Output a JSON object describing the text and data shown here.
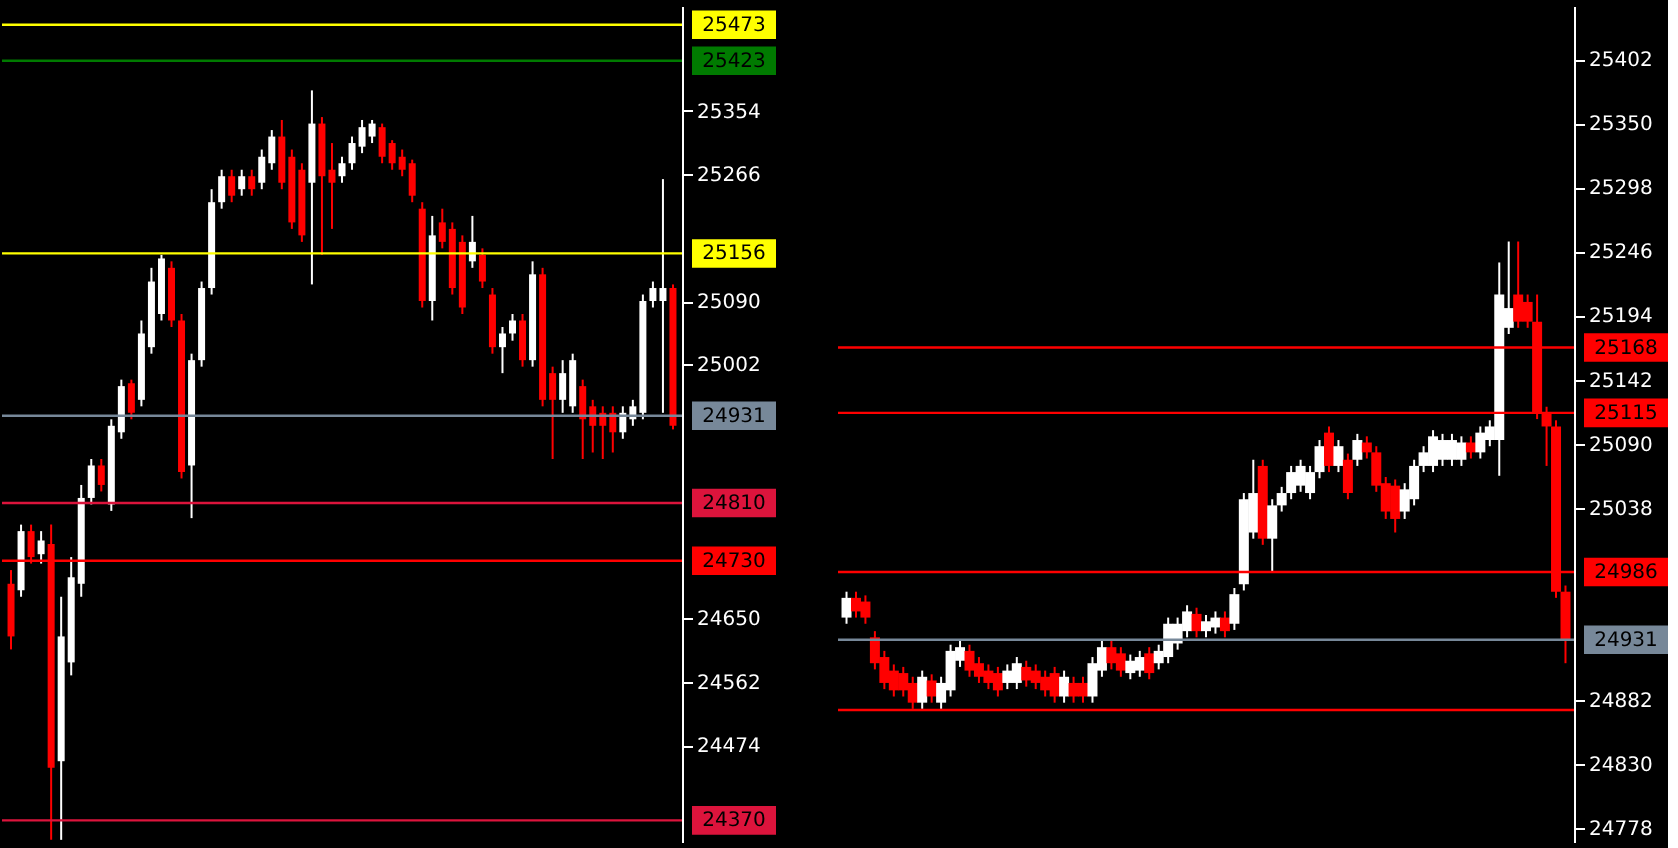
{
  "chart_data": [
    {
      "type": "candlestick",
      "tick_labels": "y",
      "grid": false,
      "categories": [
        null,
        null,
        null,
        null,
        null,
        null,
        null,
        null,
        null,
        null,
        null,
        null,
        null,
        null,
        null,
        null,
        null,
        null,
        null,
        null,
        null,
        null,
        null,
        null,
        null,
        null,
        null,
        null,
        null,
        null,
        null,
        null,
        null,
        null,
        null,
        null,
        null,
        null,
        null,
        null,
        null,
        null,
        null,
        null,
        null,
        null,
        null,
        null,
        null,
        null,
        null,
        null,
        null,
        null,
        null,
        null,
        null,
        null,
        null,
        null,
        null,
        null,
        null,
        null,
        null,
        null,
        null
      ],
      "ohlc": [
        [
          24698,
          24717,
          24607,
          24625
        ],
        [
          24689,
          24780,
          24680,
          24771
        ],
        [
          24771,
          24780,
          24726,
          24735
        ],
        [
          24739,
          24771,
          24726,
          24758
        ],
        [
          24753,
          24780,
          24343,
          24443
        ],
        [
          24452,
          24680,
          24343,
          24625
        ],
        [
          24589,
          24735,
          24571,
          24707
        ],
        [
          24698,
          24835,
          24680,
          24817
        ],
        [
          24817,
          24871,
          24808,
          24862
        ],
        [
          24862,
          24871,
          24826,
          24835
        ],
        [
          24808,
          24926,
          24799,
          24917
        ],
        [
          24908,
          24981,
          24899,
          24972
        ],
        [
          24976,
          24981,
          24926,
          24935
        ],
        [
          24953,
          25063,
          24944,
          25045
        ],
        [
          25026,
          25136,
          25017,
          25117
        ],
        [
          25072,
          25154,
          25063,
          25149
        ],
        [
          25136,
          25145,
          25054,
          25063
        ],
        [
          25063,
          25072,
          24844,
          24853
        ],
        [
          24862,
          25017,
          24789,
          25008
        ],
        [
          25008,
          25117,
          24999,
          25108
        ],
        [
          25108,
          25245,
          25099,
          25227
        ],
        [
          25227,
          25272,
          25218,
          25263
        ],
        [
          25263,
          25272,
          25227,
          25236
        ],
        [
          25245,
          25272,
          25236,
          25263
        ],
        [
          25263,
          25272,
          25236,
          25245
        ],
        [
          25254,
          25300,
          25245,
          25290
        ],
        [
          25281,
          25327,
          25272,
          25318
        ],
        [
          25318,
          25341,
          25245,
          25254
        ],
        [
          25290,
          25300,
          25190,
          25199
        ],
        [
          25272,
          25281,
          25172,
          25181
        ],
        [
          25254,
          25382,
          25113,
          25336
        ],
        [
          25336,
          25345,
          25154,
          25263
        ],
        [
          25272,
          25309,
          25190,
          25254
        ],
        [
          25263,
          25290,
          25254,
          25281
        ],
        [
          25281,
          25318,
          25272,
          25309
        ],
        [
          25304,
          25341,
          25295,
          25331
        ],
        [
          25318,
          25341,
          25309,
          25336
        ],
        [
          25331,
          25336,
          25281,
          25290
        ],
        [
          25309,
          25313,
          25272,
          25281
        ],
        [
          25290,
          25300,
          25263,
          25272
        ],
        [
          25281,
          25286,
          25227,
          25236
        ],
        [
          25218,
          25227,
          25081,
          25090
        ],
        [
          25090,
          25208,
          25063,
          25181
        ],
        [
          25199,
          25218,
          25163,
          25172
        ],
        [
          25190,
          25199,
          25099,
          25108
        ],
        [
          25172,
          25181,
          25072,
          25081
        ],
        [
          25145,
          25208,
          25136,
          25172
        ],
        [
          25154,
          25163,
          25108,
          25117
        ],
        [
          25099,
          25108,
          25017,
          25026
        ],
        [
          25026,
          25054,
          24990,
          25045
        ],
        [
          25045,
          25072,
          25035,
          25063
        ],
        [
          25063,
          25072,
          24999,
          25008
        ],
        [
          25008,
          25145,
          24999,
          25127
        ],
        [
          25127,
          25136,
          24944,
          24953
        ],
        [
          24990,
          24999,
          24871,
          24953
        ],
        [
          24953,
          25008,
          24935,
          24990
        ],
        [
          24944,
          25017,
          24935,
          25008
        ],
        [
          24972,
          24981,
          24871,
          24926
        ],
        [
          24944,
          24953,
          24880,
          24917
        ],
        [
          24935,
          24944,
          24871,
          24917
        ],
        [
          24935,
          24944,
          24880,
          24908
        ],
        [
          24908,
          24944,
          24899,
          24935
        ],
        [
          24926,
          24953,
          24917,
          24944
        ],
        [
          24935,
          25099,
          24926,
          25090
        ],
        [
          25090,
          25117,
          25081,
          25108
        ],
        [
          25090,
          25259,
          24935,
          25108
        ],
        [
          25108,
          25113,
          24912,
          24917
        ]
      ],
      "colors": [
        "#ff0000",
        "#ffffff",
        "#ff0000",
        "#ffffff",
        "#ff0000",
        "#ffffff",
        "#ffffff",
        "#ffffff",
        "#ffffff",
        "#ff0000",
        "#ffffff",
        "#ffffff",
        "#ff0000",
        "#ffffff",
        "#ffffff",
        "#ffffff",
        "#ff0000",
        "#ff0000",
        "#ffffff",
        "#ffffff",
        "#ffffff",
        "#ffffff",
        "#ff0000",
        "#ffffff",
        "#ff0000",
        "#ffffff",
        "#ffffff",
        "#ff0000",
        "#ff0000",
        "#ff0000",
        "#ffffff",
        "#ff0000",
        "#ff0000",
        "#ffffff",
        "#ffffff",
        "#ffffff",
        "#ffffff",
        "#ff0000",
        "#ff0000",
        "#ff0000",
        "#ff0000",
        "#ff0000",
        "#ffffff",
        "#ff0000",
        "#ff0000",
        "#ff0000",
        "#ffffff",
        "#ff0000",
        "#ff0000",
        "#ffffff",
        "#ffffff",
        "#ff0000",
        "#ffffff",
        "#ff0000",
        "#ff0000",
        "#ffffff",
        "#ffffff",
        "#ff0000",
        "#ff0000",
        "#ff0000",
        "#ff0000",
        "#ffffff",
        "#ffffff",
        "#ffffff",
        "#ffffff",
        "#ffffff",
        "#ff0000"
      ],
      "ylim": [
        24340,
        25499
      ],
      "yticks": [
        25354,
        25266,
        25090,
        25002,
        24650,
        24562,
        24474
      ],
      "ref_lines": [
        {
          "axis": "y",
          "value": 25473,
          "label": "25473",
          "color": "#ffff00"
        },
        {
          "axis": "y",
          "value": 25423,
          "label": "25423",
          "color": "#007a00"
        },
        {
          "axis": "y",
          "value": 25156,
          "label": "25156",
          "color": "#ffff00"
        },
        {
          "axis": "y",
          "value": 24931,
          "label": "24931",
          "color": "#778899"
        },
        {
          "axis": "y",
          "value": 24810,
          "label": "24810",
          "color": "#dc143c"
        },
        {
          "axis": "y",
          "value": 24730,
          "label": "24730",
          "color": "#ff0000"
        },
        {
          "axis": "y",
          "value": 24370,
          "label": "24370",
          "color": "#dc143c"
        }
      ]
    },
    {
      "type": "candlestick",
      "tick_labels": "y",
      "grid": false,
      "categories": [
        null,
        null,
        null,
        null,
        null,
        null,
        null,
        null,
        null,
        null,
        null,
        null,
        null,
        null,
        null,
        null,
        null,
        null,
        null,
        null,
        null,
        null,
        null,
        null,
        null,
        null,
        null,
        null,
        null,
        null,
        null,
        null,
        null,
        null,
        null,
        null,
        null,
        null,
        null,
        null,
        null,
        null,
        null,
        null,
        null,
        null,
        null,
        null,
        null,
        null,
        null,
        null,
        null,
        null,
        null,
        null,
        null,
        null,
        null,
        null,
        null,
        null,
        null,
        null,
        null,
        null,
        null,
        null,
        null,
        null,
        null,
        null,
        null,
        null,
        null,
        null,
        null
      ],
      "ohlc": [
        [
          24949,
          24970,
          24944,
          24965
        ],
        [
          24965,
          24970,
          24949,
          24954
        ],
        [
          24962,
          24967,
          24944,
          24949
        ],
        [
          24933,
          24938,
          24907,
          24912
        ],
        [
          24917,
          24922,
          24891,
          24896
        ],
        [
          24906,
          24911,
          24885,
          24890
        ],
        [
          24904,
          24909,
          24885,
          24890
        ],
        [
          24896,
          24901,
          24875,
          24880
        ],
        [
          24880,
          24906,
          24875,
          24901
        ],
        [
          24898,
          24903,
          24880,
          24885
        ],
        [
          24880,
          24901,
          24875,
          24896
        ],
        [
          24890,
          24927,
          24885,
          24922
        ],
        [
          24914,
          24930,
          24909,
          24925
        ],
        [
          24922,
          24927,
          24901,
          24906
        ],
        [
          24912,
          24917,
          24896,
          24901
        ],
        [
          24906,
          24911,
          24891,
          24896
        ],
        [
          24904,
          24909,
          24885,
          24890
        ],
        [
          24896,
          24911,
          24891,
          24906
        ],
        [
          24896,
          24917,
          24891,
          24912
        ],
        [
          24909,
          24914,
          24893,
          24898
        ],
        [
          24906,
          24911,
          24891,
          24896
        ],
        [
          24901,
          24906,
          24885,
          24890
        ],
        [
          24904,
          24909,
          24880,
          24885
        ],
        [
          24885,
          24906,
          24880,
          24901
        ],
        [
          24896,
          24901,
          24880,
          24885
        ],
        [
          24896,
          24901,
          24880,
          24885
        ],
        [
          24885,
          24917,
          24880,
          24912
        ],
        [
          24906,
          24930,
          24901,
          24925
        ],
        [
          24925,
          24930,
          24907,
          24912
        ],
        [
          24920,
          24925,
          24901,
          24906
        ],
        [
          24904,
          24919,
          24899,
          24914
        ],
        [
          24906,
          24922,
          24901,
          24917
        ],
        [
          24920,
          24925,
          24899,
          24904
        ],
        [
          24912,
          24927,
          24907,
          24922
        ],
        [
          24917,
          24949,
          24912,
          24944
        ],
        [
          24928,
          24949,
          24923,
          24944
        ],
        [
          24938,
          24959,
          24933,
          24954
        ],
        [
          24952,
          24957,
          24933,
          24938
        ],
        [
          24938,
          24951,
          24933,
          24946
        ],
        [
          24941,
          24954,
          24936,
          24949
        ],
        [
          24949,
          24954,
          24933,
          24938
        ],
        [
          24944,
          24973,
          24939,
          24968
        ],
        [
          24976,
          25050,
          24971,
          25045
        ],
        [
          25018,
          25077,
          25013,
          25050
        ],
        [
          25072,
          25077,
          25008,
          25013
        ],
        [
          25013,
          25045,
          24986,
          25040
        ],
        [
          25040,
          25055,
          25035,
          25050
        ],
        [
          25050,
          25072,
          25045,
          25067
        ],
        [
          25056,
          25077,
          25051,
          25072
        ],
        [
          25050,
          25072,
          25045,
          25067
        ],
        [
          25067,
          25093,
          25062,
          25088
        ],
        [
          25099,
          25104,
          25067,
          25072
        ],
        [
          25072,
          25093,
          25067,
          25088
        ],
        [
          25077,
          25082,
          25045,
          25050
        ],
        [
          25077,
          25098,
          25072,
          25093
        ],
        [
          25091,
          25096,
          25078,
          25083
        ],
        [
          25083,
          25088,
          25051,
          25056
        ],
        [
          25058,
          25063,
          25029,
          25035
        ],
        [
          25056,
          25061,
          25018,
          25029
        ],
        [
          25035,
          25058,
          25029,
          25053
        ],
        [
          25045,
          25077,
          25040,
          25072
        ],
        [
          25072,
          25088,
          25067,
          25083
        ],
        [
          25072,
          25101,
          25067,
          25096
        ],
        [
          25077,
          25098,
          25072,
          25093
        ],
        [
          25077,
          25098,
          25072,
          25093
        ],
        [
          25077,
          25096,
          25072,
          25091
        ],
        [
          25091,
          25096,
          25078,
          25083
        ],
        [
          25083,
          25104,
          25078,
          25099
        ],
        [
          25093,
          25109,
          25088,
          25104
        ],
        [
          25093,
          25237,
          25064,
          25211
        ],
        [
          25184,
          25254,
          25179,
          25200
        ],
        [
          25211,
          25254,
          25184,
          25189
        ],
        [
          25205,
          25211,
          25184,
          25189
        ],
        [
          25189,
          25211,
          25110,
          25115
        ],
        [
          25115,
          25120,
          25072,
          25104
        ],
        [
          25104,
          25109,
          24965,
          24970
        ],
        [
          24970,
          24975,
          24912,
          24930
        ]
      ],
      "colors": [
        "#ffffff",
        "#ff0000",
        "#ff0000",
        "#ff0000",
        "#ff0000",
        "#ff0000",
        "#ff0000",
        "#ff0000",
        "#ffffff",
        "#ff0000",
        "#ffffff",
        "#ffffff",
        "#ffffff",
        "#ff0000",
        "#ff0000",
        "#ff0000",
        "#ff0000",
        "#ffffff",
        "#ffffff",
        "#ff0000",
        "#ff0000",
        "#ff0000",
        "#ff0000",
        "#ffffff",
        "#ff0000",
        "#ff0000",
        "#ffffff",
        "#ffffff",
        "#ff0000",
        "#ff0000",
        "#ffffff",
        "#ffffff",
        "#ff0000",
        "#ffffff",
        "#ffffff",
        "#ffffff",
        "#ffffff",
        "#ff0000",
        "#ffffff",
        "#ffffff",
        "#ff0000",
        "#ffffff",
        "#ffffff",
        "#ffffff",
        "#ff0000",
        "#ffffff",
        "#ffffff",
        "#ffffff",
        "#ffffff",
        "#ffffff",
        "#ffffff",
        "#ff0000",
        "#ffffff",
        "#ff0000",
        "#ffffff",
        "#ff0000",
        "#ff0000",
        "#ff0000",
        "#ff0000",
        "#ffffff",
        "#ffffff",
        "#ffffff",
        "#ffffff",
        "#ffffff",
        "#ffffff",
        "#ffffff",
        "#ff0000",
        "#ffffff",
        "#ffffff",
        "#ffffff",
        "#ffffff",
        "#ff0000",
        "#ff0000",
        "#ff0000",
        "#ff0000",
        "#ff0000",
        "#ff0000"
      ],
      "ylim": [
        24767,
        25445
      ],
      "yticks": [
        25402,
        25350,
        25298,
        25246,
        25194,
        25142,
        25090,
        25038,
        24882,
        24830,
        24778
      ],
      "ref_lines": [
        {
          "axis": "y",
          "value": 25168,
          "label": "25168",
          "color": "#ff0000"
        },
        {
          "axis": "y",
          "value": 25115,
          "label": "25115",
          "color": "#ff0000"
        },
        {
          "axis": "y",
          "value": 24986,
          "label": "24986",
          "color": "#ff0000"
        },
        {
          "axis": "y",
          "value": 24931,
          "label": "24931",
          "color": "#778899"
        },
        {
          "axis": "y",
          "value": 24874,
          "label": null,
          "color": "#ff0000"
        }
      ]
    }
  ]
}
